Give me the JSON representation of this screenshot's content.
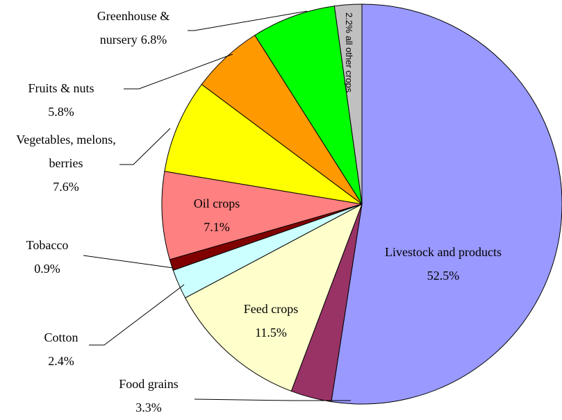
{
  "chart_data": {
    "type": "pie",
    "categories": [
      "Livestock and products",
      "Food grains",
      "Feed crops",
      "Cotton",
      "Tobacco",
      "Oil crops",
      "Vegetables, melons, berries",
      "Fruits & nuts",
      "Greenhouse & nursery",
      "all other crops"
    ],
    "values": [
      52.5,
      3.3,
      11.5,
      2.4,
      0.9,
      7.1,
      7.6,
      5.8,
      6.8,
      2.2
    ],
    "value_labels": [
      "52.5%",
      "3.3%",
      "11.5%",
      "2.4%",
      "0.9%",
      "7.1%",
      "7.6%",
      "5.8%",
      "6.8%",
      "2.2%"
    ],
    "colors": [
      "#9999ff",
      "#993366",
      "#ffffcc",
      "#ccffff",
      "#800000",
      "#ff8080",
      "#ffff00",
      "#ff9900",
      "#00ff00",
      "#c0c0c0"
    ]
  }
}
